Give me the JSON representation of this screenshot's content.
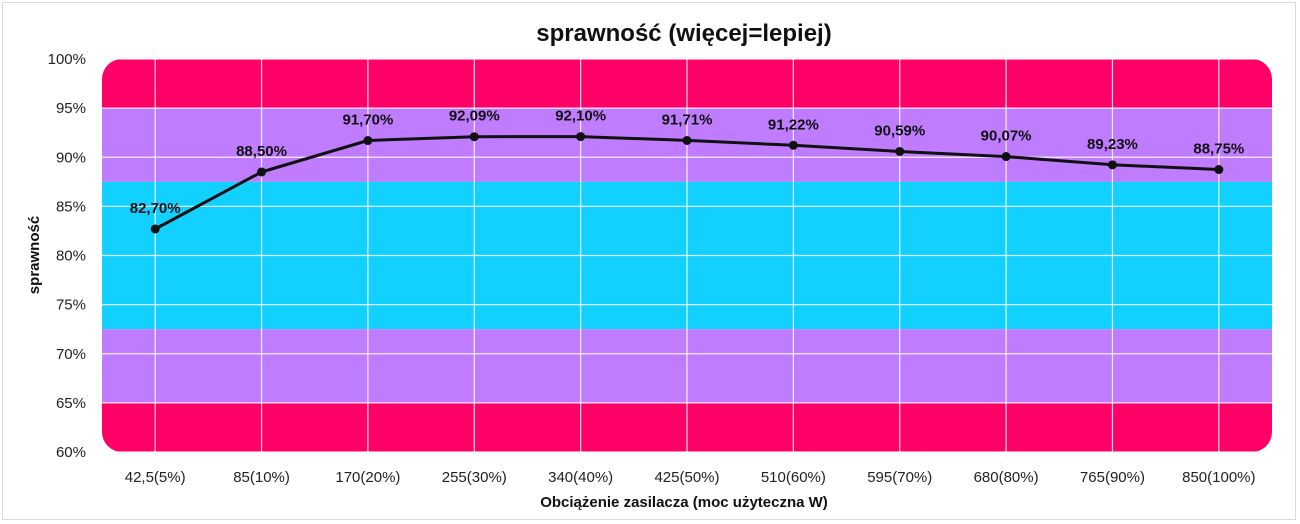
{
  "chart_data": {
    "type": "line",
    "title": "sprawność (więcej=lepiej)",
    "xlabel": "Obciążenie zasilacza (moc użyteczna W)",
    "ylabel": "sprawność",
    "ylim": [
      60,
      100
    ],
    "y_ticks": [
      60,
      65,
      70,
      75,
      80,
      85,
      90,
      95,
      100
    ],
    "y_tick_labels": [
      "60%",
      "65%",
      "70%",
      "75%",
      "80%",
      "85%",
      "90%",
      "95%",
      "100%"
    ],
    "grid": true,
    "legend": "none",
    "categories": [
      "42,5(5%)",
      "85(10%)",
      "170(20%)",
      "255(30%)",
      "340(40%)",
      "425(50%)",
      "510(60%)",
      "595(70%)",
      "680(80%)",
      "765(90%)",
      "850(100%)"
    ],
    "series": [
      {
        "name": "sprawność",
        "values": [
          82.7,
          88.5,
          91.7,
          92.09,
          92.1,
          91.71,
          91.22,
          90.59,
          90.07,
          89.23,
          88.75
        ],
        "labels": [
          "82,70%",
          "88,50%",
          "91,70%",
          "92,09%",
          "92,10%",
          "91,71%",
          "91,22%",
          "90,59%",
          "90,07%",
          "89,23%",
          "88,75%"
        ],
        "color": "#111111"
      }
    ],
    "background_bands": [
      {
        "from": 95,
        "to": 100,
        "color": "#ff0066"
      },
      {
        "from": 87.5,
        "to": 95,
        "color": "#c07cff"
      },
      {
        "from": 72.5,
        "to": 87.5,
        "color": "#12d0ff"
      },
      {
        "from": 65,
        "to": 72.5,
        "color": "#c07cff"
      },
      {
        "from": 60,
        "to": 65,
        "color": "#ff0066"
      }
    ]
  }
}
